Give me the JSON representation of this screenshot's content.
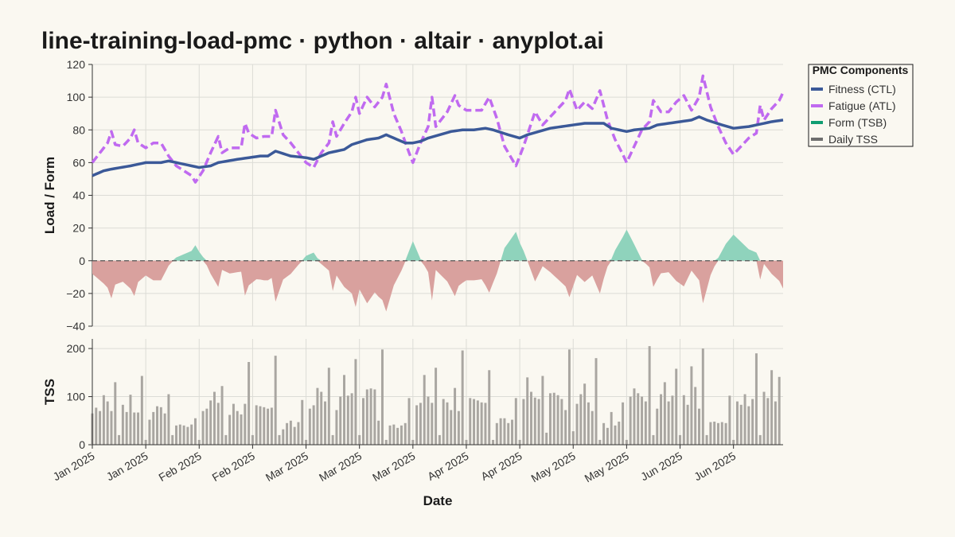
{
  "title": "line-training-load-pmc · python · altair · anyplot.ai",
  "chart_data": {
    "type": "line",
    "xlabel": "Date",
    "x_ticks": [
      "Jan 2025",
      "Jan 2025",
      "Feb 2025",
      "Feb 2025",
      "Mar 2025",
      "Mar 2025",
      "Mar 2025",
      "Apr 2025",
      "Apr 2025",
      "May 2025",
      "May 2025",
      "Jun 2025",
      "Jun 2025"
    ],
    "x_tick_days": [
      0,
      14,
      28,
      42,
      56,
      70,
      84,
      98,
      112,
      126,
      140,
      154,
      168
    ],
    "day_count": 182,
    "top_panel": {
      "ylabel": "Load / Form",
      "ylim": [
        -40,
        120
      ],
      "y_ticks": [
        -40,
        -20,
        0,
        20,
        40,
        60,
        80,
        100,
        120
      ],
      "y_tick_labels": [
        "−40",
        "−20",
        "0",
        "20",
        "40",
        "60",
        "80",
        "100",
        "120"
      ],
      "zero_line": true
    },
    "bottom_panel": {
      "ylabel": "TSS",
      "ylim": [
        0,
        220
      ],
      "y_ticks": [
        0,
        100,
        200
      ],
      "y_tick_labels": [
        "0",
        "100",
        "200"
      ]
    },
    "legend": {
      "title": "PMC Components",
      "placement": "top-right",
      "entries": [
        {
          "label": "Fitness (CTL)",
          "color": "#3B5998"
        },
        {
          "label": "Fatigue (ATL)",
          "color": "#C06AF0"
        },
        {
          "label": "Form (TSB)",
          "color": "#0F9D72"
        },
        {
          "label": "Daily TSS",
          "color": "#6E6E6E"
        }
      ]
    },
    "colors": {
      "ctl": "#3B5998",
      "atl": "#C06AF0",
      "tsb_positive": "#8FD3BC",
      "tsb_negative": "#D9A19E",
      "tss": "#A9A6A1"
    },
    "tss_keypoints": [
      [
        0,
        65
      ],
      [
        1,
        77
      ],
      [
        2,
        70
      ],
      [
        3,
        103
      ],
      [
        4,
        90
      ],
      [
        5,
        70
      ],
      [
        6,
        130
      ],
      [
        7,
        20
      ],
      [
        8,
        83
      ],
      [
        9,
        68
      ],
      [
        10,
        104
      ],
      [
        11,
        67
      ],
      [
        12,
        67
      ],
      [
        13,
        143
      ],
      [
        14,
        10
      ],
      [
        15,
        52
      ],
      [
        16,
        68
      ],
      [
        17,
        80
      ],
      [
        18,
        78
      ],
      [
        19,
        65
      ],
      [
        20,
        105
      ],
      [
        21,
        20
      ],
      [
        22,
        40
      ],
      [
        23,
        42
      ],
      [
        24,
        40
      ],
      [
        25,
        37
      ],
      [
        26,
        42
      ],
      [
        27,
        55
      ],
      [
        28,
        10
      ],
      [
        29,
        70
      ],
      [
        30,
        75
      ],
      [
        31,
        92
      ],
      [
        32,
        110
      ],
      [
        33,
        87
      ],
      [
        34,
        122
      ],
      [
        35,
        20
      ],
      [
        36,
        62
      ],
      [
        37,
        85
      ],
      [
        38,
        70
      ],
      [
        39,
        63
      ],
      [
        40,
        85
      ],
      [
        41,
        172
      ],
      [
        42,
        20
      ],
      [
        43,
        82
      ],
      [
        44,
        80
      ],
      [
        45,
        78
      ],
      [
        46,
        75
      ],
      [
        47,
        77
      ],
      [
        48,
        185
      ],
      [
        49,
        20
      ],
      [
        50,
        32
      ],
      [
        51,
        45
      ],
      [
        52,
        50
      ],
      [
        53,
        37
      ],
      [
        54,
        47
      ],
      [
        55,
        93
      ],
      [
        56,
        10
      ],
      [
        57,
        75
      ],
      [
        58,
        82
      ],
      [
        59,
        118
      ],
      [
        60,
        110
      ],
      [
        61,
        90
      ],
      [
        62,
        160
      ],
      [
        63,
        20
      ],
      [
        64,
        72
      ],
      [
        65,
        100
      ],
      [
        66,
        145
      ],
      [
        67,
        102
      ],
      [
        68,
        107
      ],
      [
        69,
        178
      ],
      [
        70,
        20
      ],
      [
        71,
        97
      ],
      [
        72,
        115
      ],
      [
        73,
        117
      ],
      [
        74,
        115
      ],
      [
        75,
        50
      ],
      [
        76,
        198
      ],
      [
        77,
        10
      ],
      [
        78,
        40
      ],
      [
        79,
        42
      ],
      [
        80,
        35
      ],
      [
        81,
        40
      ],
      [
        82,
        45
      ],
      [
        83,
        97
      ],
      [
        84,
        10
      ],
      [
        85,
        82
      ],
      [
        86,
        87
      ],
      [
        87,
        145
      ],
      [
        88,
        100
      ],
      [
        89,
        87
      ],
      [
        90,
        160
      ],
      [
        91,
        20
      ],
      [
        92,
        95
      ],
      [
        93,
        88
      ],
      [
        94,
        72
      ],
      [
        95,
        118
      ],
      [
        96,
        70
      ],
      [
        97,
        196
      ],
      [
        98,
        10
      ],
      [
        99,
        97
      ],
      [
        100,
        95
      ],
      [
        101,
        92
      ],
      [
        102,
        88
      ],
      [
        103,
        87
      ],
      [
        104,
        155
      ],
      [
        105,
        10
      ],
      [
        106,
        45
      ],
      [
        107,
        55
      ],
      [
        108,
        55
      ],
      [
        109,
        45
      ],
      [
        110,
        52
      ],
      [
        111,
        97
      ],
      [
        112,
        10
      ],
      [
        113,
        95
      ],
      [
        114,
        140
      ],
      [
        115,
        110
      ],
      [
        116,
        98
      ],
      [
        117,
        95
      ],
      [
        118,
        143
      ],
      [
        119,
        25
      ],
      [
        120,
        107
      ],
      [
        121,
        108
      ],
      [
        122,
        103
      ],
      [
        123,
        95
      ],
      [
        124,
        72
      ],
      [
        125,
        198
      ],
      [
        126,
        28
      ],
      [
        127,
        85
      ],
      [
        128,
        105
      ],
      [
        129,
        127
      ],
      [
        130,
        88
      ],
      [
        131,
        70
      ],
      [
        132,
        180
      ],
      [
        133,
        10
      ],
      [
        134,
        45
      ],
      [
        135,
        35
      ],
      [
        136,
        68
      ],
      [
        137,
        40
      ],
      [
        138,
        48
      ],
      [
        139,
        88
      ],
      [
        140,
        10
      ],
      [
        141,
        100
      ],
      [
        142,
        117
      ],
      [
        143,
        107
      ],
      [
        144,
        100
      ],
      [
        145,
        90
      ],
      [
        146,
        205
      ],
      [
        147,
        20
      ],
      [
        148,
        75
      ],
      [
        149,
        105
      ],
      [
        150,
        130
      ],
      [
        151,
        90
      ],
      [
        152,
        102
      ],
      [
        153,
        158
      ],
      [
        154,
        20
      ],
      [
        155,
        103
      ],
      [
        156,
        83
      ],
      [
        157,
        163
      ],
      [
        158,
        120
      ],
      [
        159,
        75
      ],
      [
        160,
        200
      ],
      [
        161,
        20
      ],
      [
        162,
        47
      ],
      [
        163,
        48
      ],
      [
        164,
        45
      ],
      [
        165,
        47
      ],
      [
        166,
        45
      ],
      [
        167,
        102
      ],
      [
        168,
        10
      ],
      [
        169,
        90
      ],
      [
        170,
        83
      ],
      [
        171,
        105
      ],
      [
        172,
        80
      ],
      [
        173,
        95
      ],
      [
        174,
        190
      ],
      [
        175,
        20
      ],
      [
        176,
        110
      ],
      [
        177,
        97
      ],
      [
        178,
        155
      ],
      [
        179,
        90
      ],
      [
        180,
        141
      ]
    ],
    "ctl_points": [
      [
        0,
        52
      ],
      [
        3,
        55
      ],
      [
        5,
        56
      ],
      [
        10,
        58
      ],
      [
        14,
        60
      ],
      [
        18,
        60
      ],
      [
        20,
        61
      ],
      [
        24,
        59
      ],
      [
        26,
        58
      ],
      [
        28,
        57
      ],
      [
        31,
        58
      ],
      [
        33,
        60
      ],
      [
        38,
        62
      ],
      [
        41,
        63
      ],
      [
        44,
        64
      ],
      [
        46,
        64
      ],
      [
        48,
        67
      ],
      [
        52,
        64
      ],
      [
        56,
        63
      ],
      [
        58,
        62
      ],
      [
        60,
        64
      ],
      [
        62,
        66
      ],
      [
        66,
        68
      ],
      [
        68,
        71
      ],
      [
        72,
        74
      ],
      [
        75,
        75
      ],
      [
        77,
        77
      ],
      [
        80,
        74
      ],
      [
        82,
        72
      ],
      [
        84,
        72
      ],
      [
        86,
        73
      ],
      [
        88,
        75
      ],
      [
        91,
        77
      ],
      [
        94,
        79
      ],
      [
        97,
        80
      ],
      [
        100,
        80
      ],
      [
        103,
        81
      ],
      [
        105,
        80
      ],
      [
        109,
        77
      ],
      [
        112,
        75
      ],
      [
        114,
        77
      ],
      [
        117,
        79
      ],
      [
        120,
        81
      ],
      [
        123,
        82
      ],
      [
        126,
        83
      ],
      [
        129,
        84
      ],
      [
        132,
        84
      ],
      [
        134,
        84
      ],
      [
        136,
        81
      ],
      [
        140,
        79
      ],
      [
        142,
        80
      ],
      [
        146,
        81
      ],
      [
        148,
        83
      ],
      [
        151,
        84
      ],
      [
        154,
        85
      ],
      [
        157,
        86
      ],
      [
        159,
        88
      ],
      [
        161,
        86
      ],
      [
        165,
        83
      ],
      [
        168,
        81
      ],
      [
        172,
        82
      ],
      [
        176,
        84
      ],
      [
        178,
        85
      ],
      [
        181,
        86
      ]
    ],
    "atl_points": [
      [
        0,
        60
      ],
      [
        2,
        66
      ],
      [
        4,
        72
      ],
      [
        5,
        79
      ],
      [
        6,
        71
      ],
      [
        8,
        70
      ],
      [
        10,
        75
      ],
      [
        11,
        80
      ],
      [
        12,
        72
      ],
      [
        14,
        69
      ],
      [
        16,
        72
      ],
      [
        18,
        72
      ],
      [
        20,
        64
      ],
      [
        22,
        58
      ],
      [
        24,
        55
      ],
      [
        26,
        52
      ],
      [
        27,
        48
      ],
      [
        29,
        55
      ],
      [
        31,
        66
      ],
      [
        33,
        76
      ],
      [
        34,
        66
      ],
      [
        36,
        69
      ],
      [
        39,
        69
      ],
      [
        40,
        84
      ],
      [
        41,
        78
      ],
      [
        43,
        75
      ],
      [
        45,
        76
      ],
      [
        47,
        76
      ],
      [
        48,
        92
      ],
      [
        50,
        77
      ],
      [
        52,
        72
      ],
      [
        54,
        66
      ],
      [
        56,
        60
      ],
      [
        58,
        57
      ],
      [
        60,
        66
      ],
      [
        62,
        72
      ],
      [
        63,
        85
      ],
      [
        64,
        76
      ],
      [
        66,
        84
      ],
      [
        68,
        91
      ],
      [
        69,
        100
      ],
      [
        70,
        90
      ],
      [
        72,
        100
      ],
      [
        74,
        94
      ],
      [
        76,
        100
      ],
      [
        77,
        108
      ],
      [
        79,
        90
      ],
      [
        81,
        79
      ],
      [
        83,
        66
      ],
      [
        84,
        60
      ],
      [
        86,
        72
      ],
      [
        88,
        82
      ],
      [
        89,
        100
      ],
      [
        90,
        82
      ],
      [
        93,
        91
      ],
      [
        95,
        101
      ],
      [
        96,
        95
      ],
      [
        98,
        92
      ],
      [
        100,
        92
      ],
      [
        102,
        92
      ],
      [
        104,
        100
      ],
      [
        106,
        87
      ],
      [
        108,
        70
      ],
      [
        110,
        62
      ],
      [
        111,
        58
      ],
      [
        113,
        70
      ],
      [
        115,
        84
      ],
      [
        116,
        91
      ],
      [
        118,
        83
      ],
      [
        120,
        88
      ],
      [
        122,
        93
      ],
      [
        124,
        98
      ],
      [
        125,
        105
      ],
      [
        127,
        92
      ],
      [
        129,
        97
      ],
      [
        131,
        93
      ],
      [
        133,
        104
      ],
      [
        135,
        86
      ],
      [
        137,
        74
      ],
      [
        139,
        65
      ],
      [
        140,
        60
      ],
      [
        142,
        70
      ],
      [
        144,
        80
      ],
      [
        146,
        85
      ],
      [
        147,
        98
      ],
      [
        149,
        91
      ],
      [
        151,
        91
      ],
      [
        153,
        97
      ],
      [
        155,
        101
      ],
      [
        157,
        92
      ],
      [
        159,
        100
      ],
      [
        160,
        113
      ],
      [
        162,
        94
      ],
      [
        164,
        82
      ],
      [
        166,
        72
      ],
      [
        168,
        65
      ],
      [
        170,
        70
      ],
      [
        172,
        75
      ],
      [
        174,
        78
      ],
      [
        175,
        95
      ],
      [
        176,
        86
      ],
      [
        178,
        93
      ],
      [
        180,
        98
      ],
      [
        181,
        103
      ]
    ]
  }
}
